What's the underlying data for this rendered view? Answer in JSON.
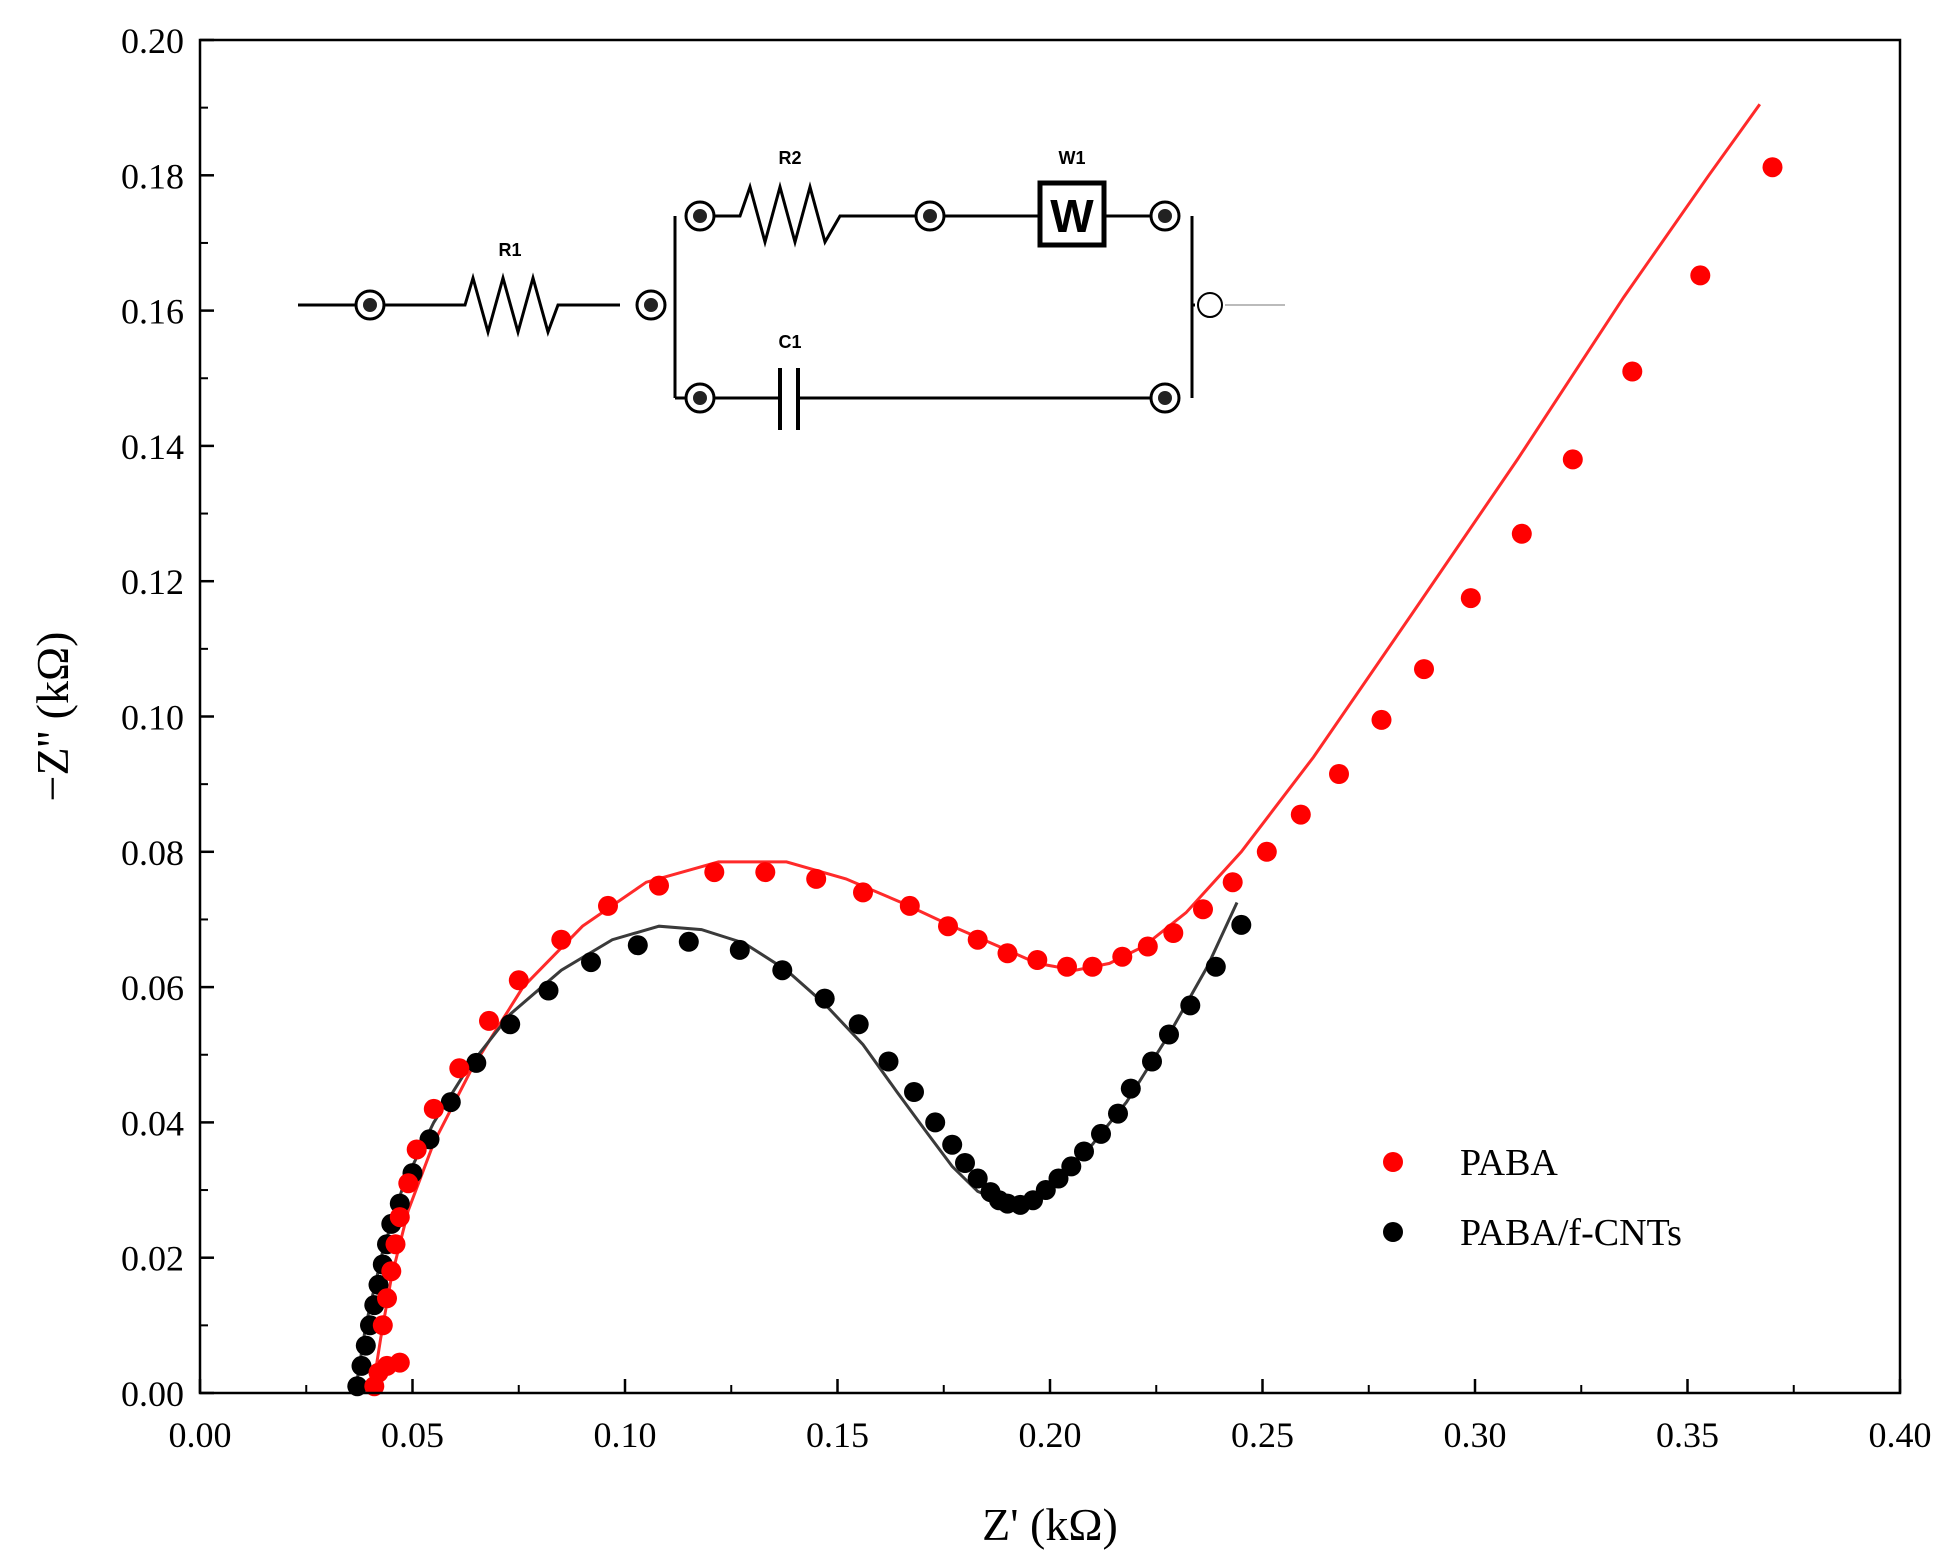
{
  "chart_data": {
    "type": "scatter",
    "title": "",
    "xlabel": "Z' (kΩ)",
    "ylabel": "−Z'' (kΩ)",
    "xlim": [
      0.0,
      0.4
    ],
    "ylim": [
      0.0,
      0.2
    ],
    "xticks": [
      "0.00",
      "0.05",
      "0.10",
      "0.15",
      "0.20",
      "0.25",
      "0.30",
      "0.35",
      "0.40"
    ],
    "yticks": [
      "0.00",
      "0.02",
      "0.04",
      "0.06",
      "0.08",
      "0.10",
      "0.12",
      "0.14",
      "0.16",
      "0.18",
      "0.20"
    ],
    "grid": false,
    "legend_position": "lower-right",
    "series": [
      {
        "name": "PABA",
        "color": "#ff0000",
        "points": [
          [
            0.041,
            0.001
          ],
          [
            0.042,
            0.003
          ],
          [
            0.044,
            0.004
          ],
          [
            0.047,
            0.0045
          ],
          [
            0.043,
            0.01
          ],
          [
            0.044,
            0.014
          ],
          [
            0.045,
            0.018
          ],
          [
            0.046,
            0.022
          ],
          [
            0.047,
            0.026
          ],
          [
            0.049,
            0.031
          ],
          [
            0.051,
            0.036
          ],
          [
            0.055,
            0.042
          ],
          [
            0.061,
            0.048
          ],
          [
            0.068,
            0.055
          ],
          [
            0.075,
            0.061
          ],
          [
            0.085,
            0.067
          ],
          [
            0.096,
            0.072
          ],
          [
            0.108,
            0.075
          ],
          [
            0.121,
            0.077
          ],
          [
            0.133,
            0.077
          ],
          [
            0.145,
            0.076
          ],
          [
            0.156,
            0.074
          ],
          [
            0.167,
            0.072
          ],
          [
            0.176,
            0.069
          ],
          [
            0.183,
            0.067
          ],
          [
            0.19,
            0.065
          ],
          [
            0.197,
            0.064
          ],
          [
            0.204,
            0.063
          ],
          [
            0.21,
            0.063
          ],
          [
            0.217,
            0.0645
          ],
          [
            0.223,
            0.066
          ],
          [
            0.229,
            0.068
          ],
          [
            0.236,
            0.0715
          ],
          [
            0.243,
            0.0755
          ],
          [
            0.251,
            0.08
          ],
          [
            0.259,
            0.0855
          ],
          [
            0.268,
            0.0915
          ],
          [
            0.278,
            0.0995
          ],
          [
            0.288,
            0.107
          ],
          [
            0.299,
            0.1175
          ],
          [
            0.311,
            0.127
          ],
          [
            0.323,
            0.138
          ],
          [
            0.337,
            0.151
          ],
          [
            0.353,
            0.1652
          ],
          [
            0.37,
            0.1812
          ]
        ],
        "fit": [
          [
            0.0405,
            0.0
          ],
          [
            0.0425,
            0.008
          ],
          [
            0.045,
            0.017
          ],
          [
            0.049,
            0.027
          ],
          [
            0.055,
            0.037
          ],
          [
            0.064,
            0.048
          ],
          [
            0.076,
            0.06
          ],
          [
            0.09,
            0.069
          ],
          [
            0.105,
            0.0755
          ],
          [
            0.122,
            0.0785
          ],
          [
            0.138,
            0.0785
          ],
          [
            0.152,
            0.076
          ],
          [
            0.165,
            0.0725
          ],
          [
            0.177,
            0.069
          ],
          [
            0.188,
            0.066
          ],
          [
            0.197,
            0.0635
          ],
          [
            0.206,
            0.0625
          ],
          [
            0.214,
            0.0635
          ],
          [
            0.222,
            0.066
          ],
          [
            0.232,
            0.071
          ],
          [
            0.245,
            0.08
          ],
          [
            0.262,
            0.094
          ],
          [
            0.285,
            0.115
          ],
          [
            0.31,
            0.138
          ],
          [
            0.335,
            0.162
          ],
          [
            0.355,
            0.18
          ],
          [
            0.367,
            0.1905
          ]
        ]
      },
      {
        "name": "PABA/f-CNTs",
        "color": "#000000",
        "points": [
          [
            0.037,
            0.001
          ],
          [
            0.038,
            0.004
          ],
          [
            0.039,
            0.007
          ],
          [
            0.04,
            0.01
          ],
          [
            0.041,
            0.013
          ],
          [
            0.042,
            0.016
          ],
          [
            0.043,
            0.019
          ],
          [
            0.044,
            0.022
          ],
          [
            0.045,
            0.025
          ],
          [
            0.047,
            0.028
          ],
          [
            0.05,
            0.0325
          ],
          [
            0.054,
            0.0375
          ],
          [
            0.059,
            0.043
          ],
          [
            0.065,
            0.0488
          ],
          [
            0.073,
            0.0545
          ],
          [
            0.082,
            0.0595
          ],
          [
            0.092,
            0.0637
          ],
          [
            0.103,
            0.0662
          ],
          [
            0.115,
            0.0667
          ],
          [
            0.127,
            0.0655
          ],
          [
            0.137,
            0.0625
          ],
          [
            0.147,
            0.0583
          ],
          [
            0.155,
            0.0545
          ],
          [
            0.162,
            0.049
          ],
          [
            0.168,
            0.0445
          ],
          [
            0.173,
            0.04
          ],
          [
            0.177,
            0.0367
          ],
          [
            0.18,
            0.034
          ],
          [
            0.183,
            0.0317
          ],
          [
            0.186,
            0.0297
          ],
          [
            0.188,
            0.0285
          ],
          [
            0.19,
            0.028
          ],
          [
            0.193,
            0.0278
          ],
          [
            0.196,
            0.0285
          ],
          [
            0.199,
            0.03
          ],
          [
            0.202,
            0.0317
          ],
          [
            0.205,
            0.0335
          ],
          [
            0.208,
            0.0357
          ],
          [
            0.212,
            0.0383
          ],
          [
            0.216,
            0.0413
          ],
          [
            0.219,
            0.045
          ],
          [
            0.224,
            0.049
          ],
          [
            0.228,
            0.053
          ],
          [
            0.233,
            0.0573
          ],
          [
            0.239,
            0.063
          ],
          [
            0.245,
            0.0692
          ]
        ],
        "fit": [
          [
            0.0365,
            0.0
          ],
          [
            0.039,
            0.01
          ],
          [
            0.043,
            0.021
          ],
          [
            0.048,
            0.031
          ],
          [
            0.055,
            0.04
          ],
          [
            0.063,
            0.048
          ],
          [
            0.073,
            0.056
          ],
          [
            0.085,
            0.0625
          ],
          [
            0.097,
            0.067
          ],
          [
            0.108,
            0.069
          ],
          [
            0.118,
            0.0685
          ],
          [
            0.128,
            0.0665
          ],
          [
            0.138,
            0.0625
          ],
          [
            0.147,
            0.0575
          ],
          [
            0.156,
            0.0515
          ],
          [
            0.164,
            0.0445
          ],
          [
            0.171,
            0.0385
          ],
          [
            0.177,
            0.0335
          ],
          [
            0.183,
            0.0298
          ],
          [
            0.189,
            0.0282
          ],
          [
            0.195,
            0.0285
          ],
          [
            0.201,
            0.031
          ],
          [
            0.209,
            0.036
          ],
          [
            0.218,
            0.043
          ],
          [
            0.228,
            0.053
          ],
          [
            0.237,
            0.063
          ],
          [
            0.244,
            0.0725
          ]
        ]
      }
    ],
    "inset_circuit": {
      "r1_label": "R1",
      "r2_label": "R2",
      "w1_label": "W1",
      "w_symbol": "W",
      "c1_label": "C1"
    }
  }
}
